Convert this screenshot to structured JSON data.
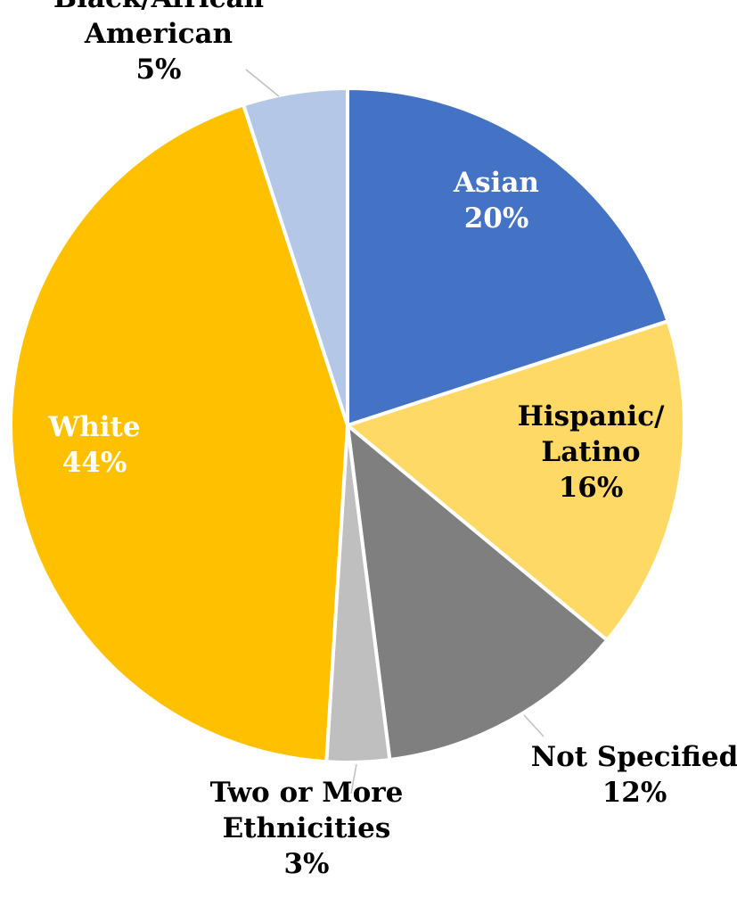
{
  "chart_data": {
    "type": "pie",
    "title": "",
    "start_angle_deg": 0,
    "direction": "clockwise",
    "slices": [
      {
        "key": "asian",
        "label_lines": [
          "Asian",
          "20%"
        ],
        "value": 20,
        "color": "#4472C4",
        "label_color": "#FFFFFF"
      },
      {
        "key": "hispanic-latino",
        "label_lines": [
          "Hispanic/",
          "Latino",
          "16%"
        ],
        "value": 16,
        "color": "#FFD966",
        "label_color": "#000000"
      },
      {
        "key": "not-specified",
        "label_lines": [
          "Not Specified",
          "12%"
        ],
        "value": 12,
        "color": "#7F7F7F",
        "label_color": "#000000"
      },
      {
        "key": "two-or-more",
        "label_lines": [
          "Two or More",
          "Ethnicities",
          "3%"
        ],
        "value": 3,
        "color": "#BFBFBF",
        "label_color": "#000000"
      },
      {
        "key": "white",
        "label_lines": [
          "White",
          "44%"
        ],
        "value": 44,
        "color": "#FFC000",
        "label_color": "#FFFFFF"
      },
      {
        "key": "black-african-american",
        "label_lines": [
          "Black/African",
          "American",
          "5%"
        ],
        "value": 5,
        "color": "#B4C7E7",
        "label_color": "#000000"
      }
    ]
  }
}
